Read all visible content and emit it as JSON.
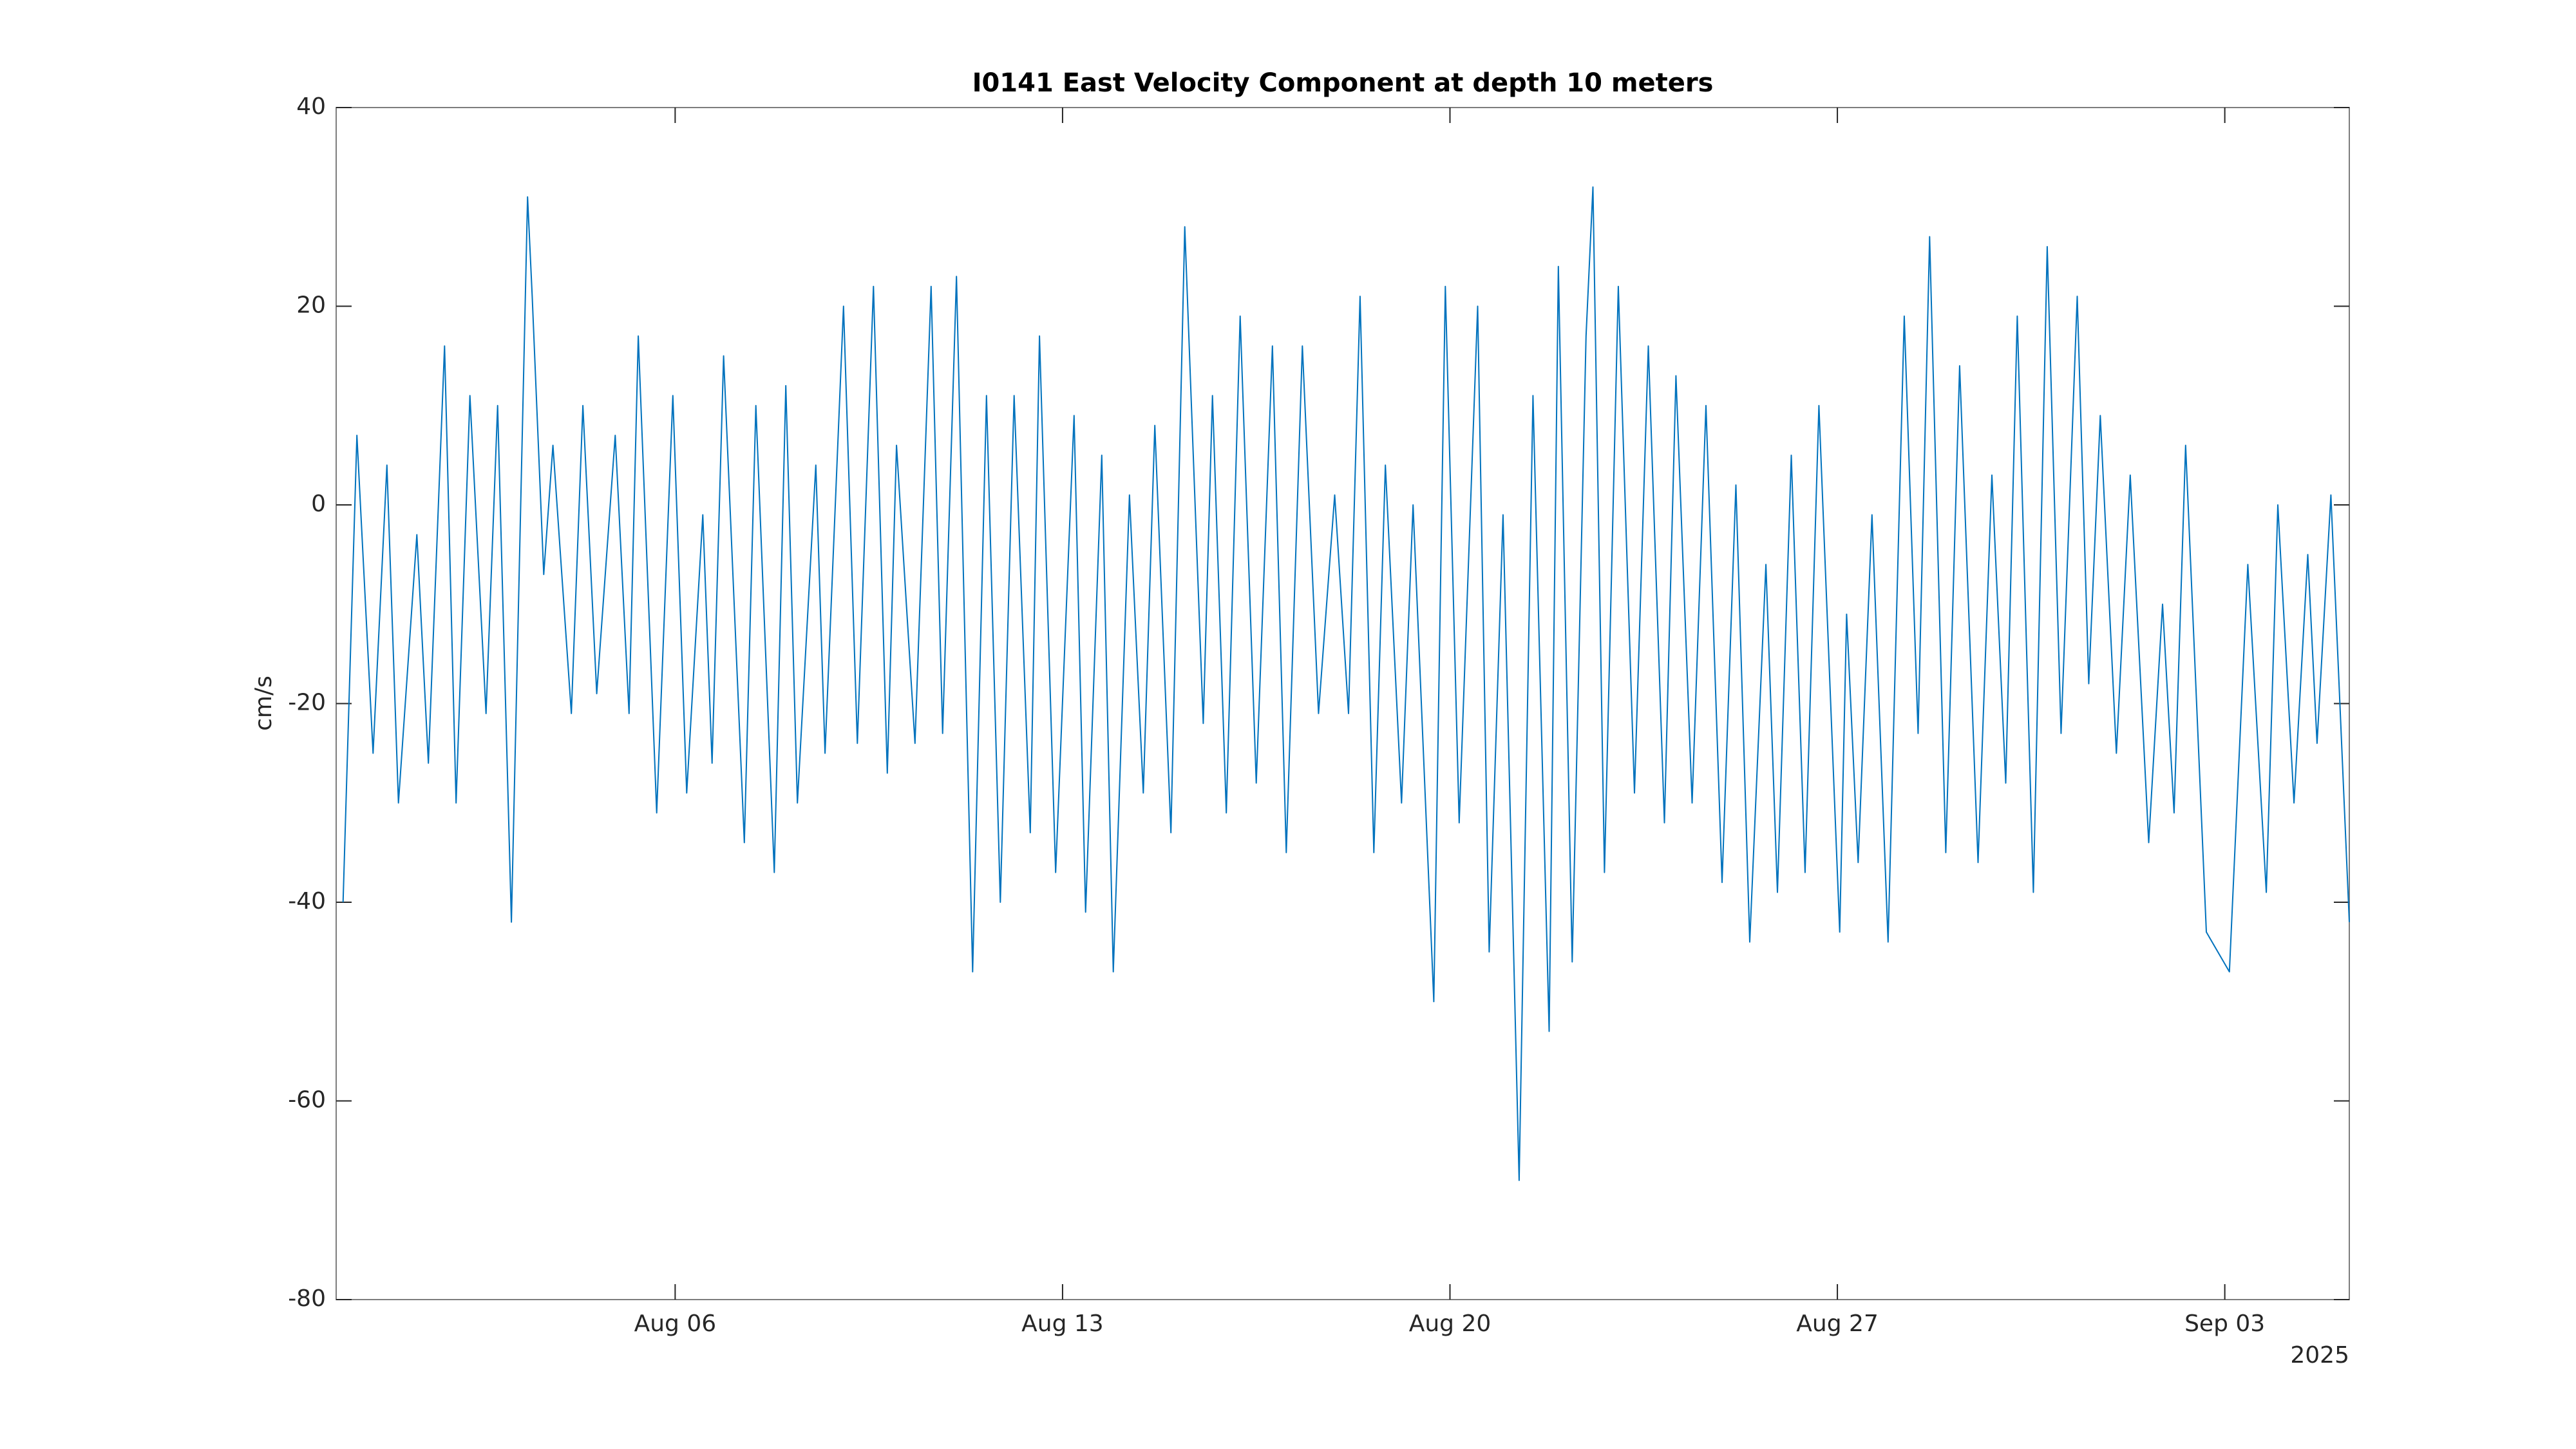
{
  "chart_data": {
    "type": "line",
    "title": "I0141 East Velocity Component at depth 10 meters",
    "y_label": "cm/s",
    "x_year_label": "2025",
    "color": "#0072bd",
    "xlim": [
      "2025-07-30T21:00",
      "2025-09-05T06:00"
    ],
    "xticks": [
      {
        "value": "2025-08-06T00:00",
        "label": "Aug 06"
      },
      {
        "value": "2025-08-13T00:00",
        "label": "Aug 13"
      },
      {
        "value": "2025-08-20T00:00",
        "label": "Aug 20"
      },
      {
        "value": "2025-08-27T00:00",
        "label": "Aug 27"
      },
      {
        "value": "2025-09-03T00:00",
        "label": "Sep 03"
      }
    ],
    "ylim": [
      -80,
      40
    ],
    "yticks": [
      -80,
      -60,
      -40,
      -20,
      0,
      20,
      40
    ],
    "grid": false,
    "x": [
      "2025-07-31T00:00",
      "2025-07-31T06:00",
      "2025-07-31T13:00",
      "2025-07-31T19:00",
      "2025-08-01T00:00",
      "2025-08-01T08:00",
      "2025-08-01T13:00",
      "2025-08-01T20:00",
      "2025-08-02T01:00",
      "2025-08-02T07:00",
      "2025-08-02T14:00",
      "2025-08-02T19:00",
      "2025-08-03T01:00",
      "2025-08-03T08:00",
      "2025-08-03T10:00",
      "2025-08-03T15:00",
      "2025-08-03T19:00",
      "2025-08-04T03:00",
      "2025-08-04T08:00",
      "2025-08-04T14:00",
      "2025-08-04T22:00",
      "2025-08-05T04:00",
      "2025-08-05T08:00",
      "2025-08-05T16:00",
      "2025-08-05T23:00",
      "2025-08-06T05:00",
      "2025-08-06T12:00",
      "2025-08-06T16:00",
      "2025-08-06T21:00",
      "2025-08-07T06:00",
      "2025-08-07T11:00",
      "2025-08-07T19:00",
      "2025-08-08T00:00",
      "2025-08-08T05:00",
      "2025-08-08T13:00",
      "2025-08-08T17:00",
      "2025-08-09T01:00",
      "2025-08-09T07:00",
      "2025-08-09T14:00",
      "2025-08-09T20:00",
      "2025-08-10T00:00",
      "2025-08-10T08:00",
      "2025-08-10T15:00",
      "2025-08-10T20:00",
      "2025-08-11T02:00",
      "2025-08-11T09:00",
      "2025-08-11T15:00",
      "2025-08-11T21:00",
      "2025-08-12T03:00",
      "2025-08-12T10:00",
      "2025-08-12T14:00",
      "2025-08-12T21:00",
      "2025-08-13T05:00",
      "2025-08-13T10:00",
      "2025-08-13T17:00",
      "2025-08-13T22:00",
      "2025-08-14T05:00",
      "2025-08-14T11:00",
      "2025-08-14T16:00",
      "2025-08-14T23:00",
      "2025-08-15T05:00",
      "2025-08-15T13:00",
      "2025-08-15T17:00",
      "2025-08-15T23:00",
      "2025-08-16T05:00",
      "2025-08-16T12:00",
      "2025-08-16T19:00",
      "2025-08-17T01:00",
      "2025-08-17T08:00",
      "2025-08-17T15:00",
      "2025-08-17T22:00",
      "2025-08-18T04:00",
      "2025-08-18T09:00",
      "2025-08-18T15:00",
      "2025-08-18T20:00",
      "2025-08-19T03:00",
      "2025-08-19T08:00",
      "2025-08-19T17:00",
      "2025-08-19T22:00",
      "2025-08-20T04:00",
      "2025-08-20T12:00",
      "2025-08-20T17:00",
      "2025-08-20T23:00",
      "2025-08-21T06:00",
      "2025-08-21T12:00",
      "2025-08-21T19:00",
      "2025-08-21T23:00",
      "2025-08-22T05:00",
      "2025-08-22T11:00",
      "2025-08-22T14:00",
      "2025-08-22T19:00",
      "2025-08-23T01:00",
      "2025-08-23T08:00",
      "2025-08-23T14:00",
      "2025-08-23T21:00",
      "2025-08-24T02:00",
      "2025-08-24T09:00",
      "2025-08-24T15:00",
      "2025-08-24T22:00",
      "2025-08-25T04:00",
      "2025-08-25T10:00",
      "2025-08-25T17:00",
      "2025-08-25T22:00",
      "2025-08-26T04:00",
      "2025-08-26T10:00",
      "2025-08-26T16:00",
      "2025-08-27T01:00",
      "2025-08-27T04:00",
      "2025-08-27T09:00",
      "2025-08-27T15:00",
      "2025-08-27T22:00",
      "2025-08-28T05:00",
      "2025-08-28T11:00",
      "2025-08-28T16:00",
      "2025-08-28T23:00",
      "2025-08-29T05:00",
      "2025-08-29T13:00",
      "2025-08-29T19:00",
      "2025-08-30T01:00",
      "2025-08-30T06:00",
      "2025-08-30T13:00",
      "2025-08-30T19:00",
      "2025-08-31T01:00",
      "2025-08-31T08:00",
      "2025-08-31T13:00",
      "2025-08-31T18:00",
      "2025-09-01T01:00",
      "2025-09-01T07:00",
      "2025-09-01T15:00",
      "2025-09-01T21:00",
      "2025-09-02T02:00",
      "2025-09-02T07:00",
      "2025-09-02T16:00",
      "2025-09-03T02:00",
      "2025-09-03T10:00",
      "2025-09-03T18:00",
      "2025-09-03T23:00",
      "2025-09-04T06:00",
      "2025-09-04T12:00",
      "2025-09-04T16:00",
      "2025-09-04T22:00",
      "2025-09-05T06:00"
    ],
    "values": [
      -40,
      7,
      -25,
      4,
      -30,
      -3,
      -26,
      16,
      -30,
      11,
      -21,
      10,
      -42,
      31,
      21,
      -7,
      6,
      -21,
      10,
      -19,
      7,
      -21,
      17,
      -31,
      11,
      -29,
      -1,
      -26,
      15,
      -34,
      10,
      -37,
      12,
      -30,
      4,
      -25,
      20,
      -24,
      22,
      -27,
      6,
      -24,
      22,
      -23,
      23,
      -47,
      11,
      -40,
      11,
      -33,
      17,
      -37,
      9,
      -41,
      5,
      -47,
      1,
      -29,
      8,
      -33,
      28,
      -22,
      11,
      -31,
      19,
      -28,
      16,
      -35,
      16,
      -21,
      1,
      -21,
      21,
      -35,
      4,
      -30,
      0,
      -50,
      22,
      -32,
      20,
      -45,
      -1,
      -68,
      11,
      -53,
      24,
      -46,
      17,
      32,
      -37,
      22,
      -29,
      16,
      -32,
      13,
      -30,
      10,
      -38,
      2,
      -44,
      -6,
      -39,
      5,
      -37,
      10,
      -43,
      -11,
      -36,
      -1,
      -44,
      19,
      -23,
      27,
      -35,
      14,
      -36,
      3,
      -28,
      19,
      -39,
      26,
      -23,
      21,
      -18,
      9,
      -25,
      3,
      -34,
      -10,
      -31,
      6,
      -43,
      -47,
      -6,
      -39,
      0,
      -30,
      -5,
      -24,
      1,
      -42
    ]
  }
}
